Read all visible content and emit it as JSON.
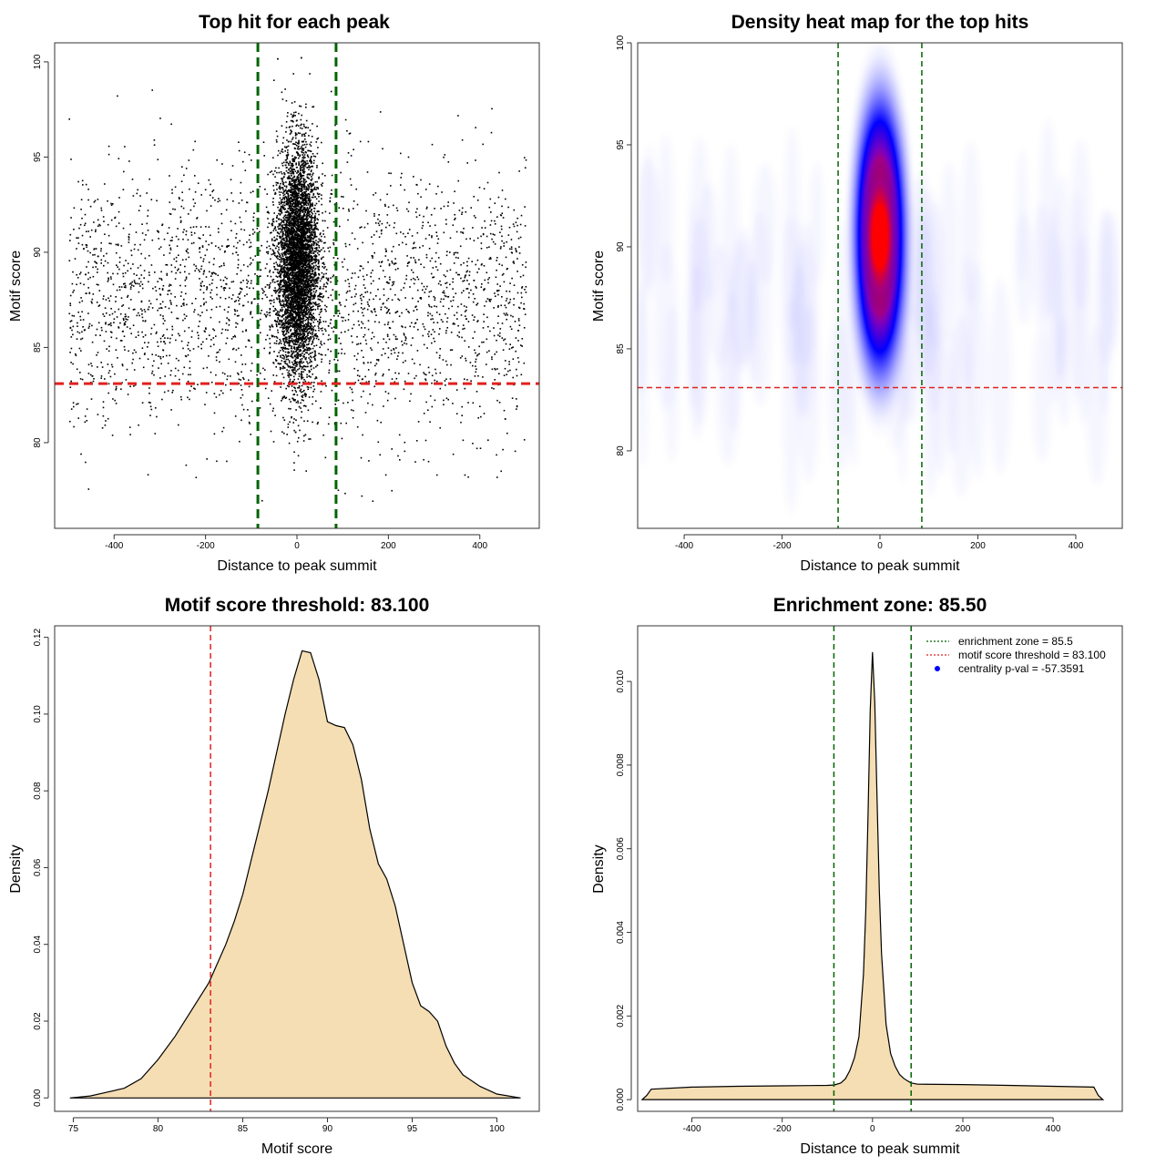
{
  "colors": {
    "green_line": "#006400",
    "red_line": "#e0211f",
    "fill": "#f5deb3",
    "heat_low": "#ffffff",
    "heat_mid": "#0000ff",
    "heat_high": "#ff0000"
  },
  "chart_data": [
    {
      "id": "scatter",
      "type": "scatter",
      "title": "Top hit for each peak",
      "xlabel": "Distance to peak summit",
      "ylabel": "Motif score",
      "xlim": [
        -530,
        530
      ],
      "ylim": [
        75.5,
        101
      ],
      "xticks": [
        -400,
        -200,
        0,
        200,
        400
      ],
      "yticks": [
        80,
        85,
        90,
        95,
        100
      ],
      "vlines": [
        -85.5,
        85.5
      ],
      "hline": 83.1,
      "background_hits": {
        "count": 2700,
        "x_range": [
          -500,
          500
        ],
        "score_mean": 87.5,
        "score_sd": 3.5
      },
      "central_hits": {
        "count": 5500,
        "x_sd": 22,
        "score_mean": 89.5,
        "score_sd": 3.0
      }
    },
    {
      "id": "heatmap",
      "type": "heatmap",
      "title": "Density heat map for the top hits",
      "xlabel": "Distance to peak summit",
      "ylabel": "Motif score",
      "xlim": [
        -495,
        495
      ],
      "ylim": [
        76.2,
        100
      ],
      "xticks": [
        -400,
        -200,
        0,
        200,
        400
      ],
      "yticks": [
        80,
        85,
        90,
        95,
        100
      ],
      "vlines": [
        -85.5,
        85.5
      ],
      "hline": 83.1,
      "peak": {
        "x": 0,
        "score": 90.5
      }
    },
    {
      "id": "score-density",
      "type": "area",
      "title": "Motif score threshold: 83.100",
      "xlabel": "Motif score",
      "ylabel": "Density",
      "xlim": [
        73.9,
        102.5
      ],
      "ylim": [
        -0.0035,
        0.123
      ],
      "xticks": [
        75,
        80,
        85,
        90,
        95,
        100
      ],
      "yticks": [
        0.0,
        0.02,
        0.04,
        0.06,
        0.08,
        0.1,
        0.12
      ],
      "ytick_labels": [
        "0.00",
        "0.02",
        "0.04",
        "0.06",
        "0.08",
        "0.10",
        "0.12"
      ],
      "vline": 83.1,
      "x": [
        74.8,
        76,
        77,
        78,
        79,
        80,
        81,
        82,
        83,
        84,
        84.5,
        85,
        85.5,
        86,
        86.5,
        87,
        87.5,
        88,
        88.5,
        89,
        89.5,
        90,
        90.5,
        91,
        91.5,
        92,
        92.5,
        93,
        93.5,
        94,
        94.5,
        95,
        95.5,
        96,
        96.5,
        97,
        97.5,
        98,
        99,
        100,
        101.4
      ],
      "y": [
        0.0,
        0.0005,
        0.0015,
        0.0025,
        0.005,
        0.01,
        0.016,
        0.023,
        0.03,
        0.04,
        0.046,
        0.053,
        0.062,
        0.071,
        0.08,
        0.09,
        0.1,
        0.109,
        0.1165,
        0.116,
        0.109,
        0.098,
        0.097,
        0.0965,
        0.092,
        0.083,
        0.07,
        0.061,
        0.057,
        0.05,
        0.04,
        0.03,
        0.024,
        0.0225,
        0.02,
        0.0135,
        0.009,
        0.006,
        0.003,
        0.001,
        0.0
      ]
    },
    {
      "id": "distance-density",
      "type": "area",
      "title": "Enrichment zone: 85.50",
      "xlabel": "Distance to peak summit",
      "ylabel": "Density",
      "xlim": [
        -520,
        553
      ],
      "ylim": [
        -0.00028,
        0.01133
      ],
      "xticks": [
        -400,
        -200,
        0,
        200,
        400
      ],
      "yticks": [
        0.0,
        0.002,
        0.004,
        0.006,
        0.008,
        0.01
      ],
      "ytick_labels": [
        "0.000",
        "0.002",
        "0.004",
        "0.006",
        "0.008",
        "0.010"
      ],
      "vlines": [
        -85.5,
        85.5
      ],
      "x": [
        -510,
        -500,
        -490,
        -400,
        -300,
        -200,
        -100,
        -85,
        -70,
        -60,
        -50,
        -40,
        -30,
        -20,
        -15,
        -10,
        -5,
        0,
        5,
        10,
        15,
        20,
        30,
        40,
        50,
        60,
        70,
        85,
        100,
        200,
        300,
        400,
        490,
        500,
        510
      ],
      "y": [
        0.0,
        0.0001,
        0.00025,
        0.0003,
        0.00032,
        0.00033,
        0.00034,
        0.00035,
        0.0004,
        0.0005,
        0.0007,
        0.001,
        0.0015,
        0.003,
        0.0045,
        0.0068,
        0.0093,
        0.0107,
        0.0095,
        0.0072,
        0.005,
        0.0035,
        0.0018,
        0.0011,
        0.0008,
        0.0006,
        0.0005,
        0.0004,
        0.00037,
        0.00036,
        0.00034,
        0.00032,
        0.0003,
        0.0001,
        0.0
      ],
      "legend": {
        "position": "top-right",
        "entries": [
          {
            "label": "enrichment zone = 85.5",
            "kind": "dotted-line",
            "color": "#006400"
          },
          {
            "label": "motif score threshold = 83.100",
            "kind": "dotted-line",
            "color": "#e0211f"
          },
          {
            "label": "centrality p-val = -57.3591",
            "kind": "point",
            "color": "#0000ff"
          }
        ]
      }
    }
  ]
}
